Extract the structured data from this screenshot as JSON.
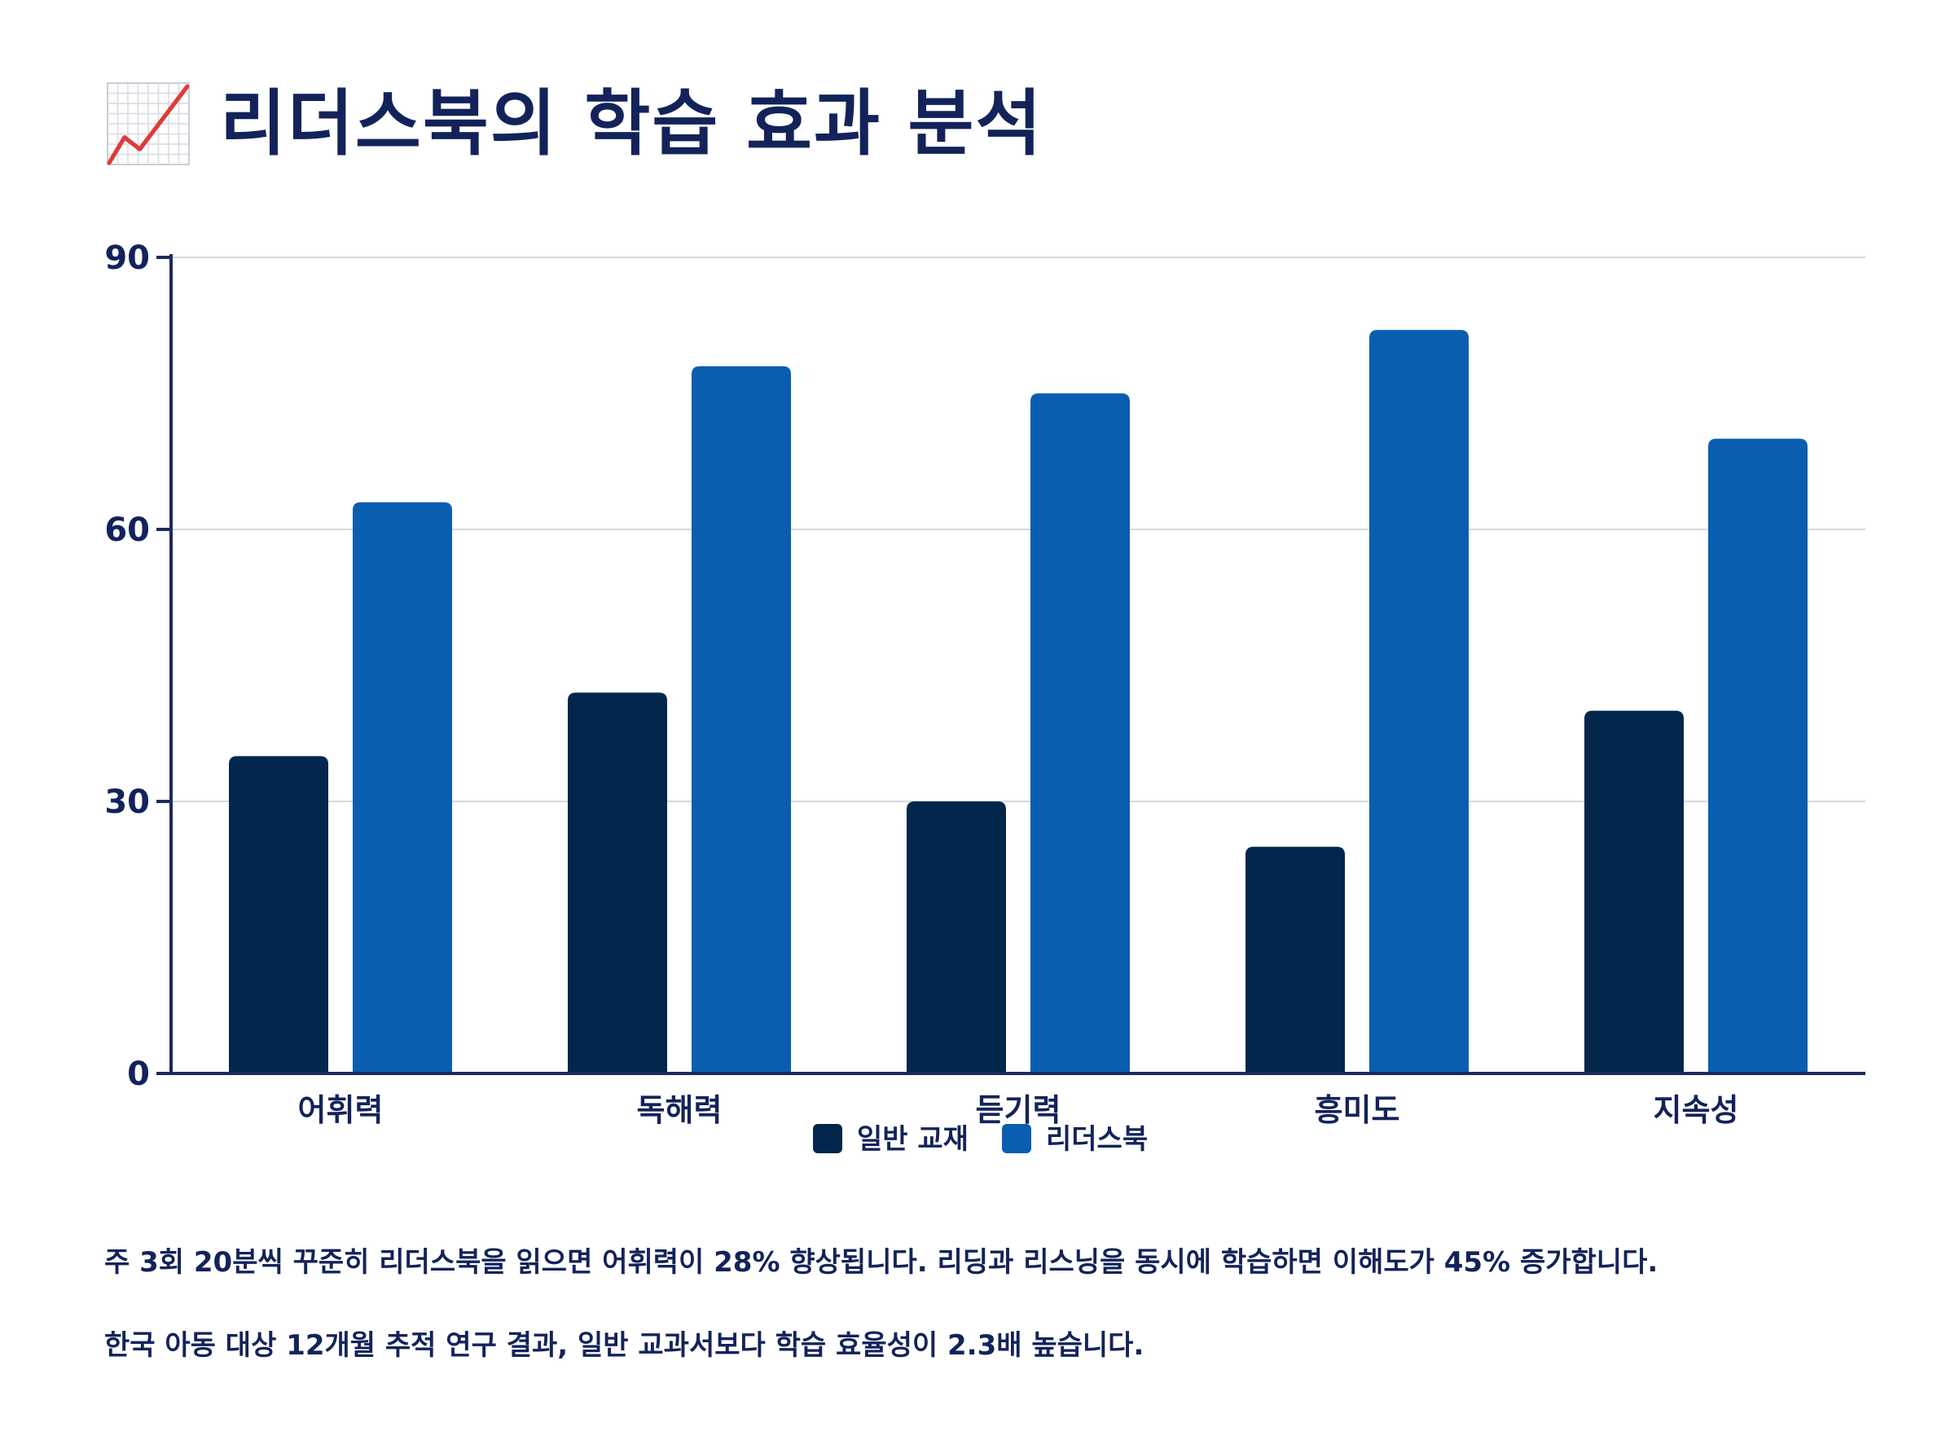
{
  "title": "리더스북의 학습 효과 분석",
  "icon": "chart-increasing-icon",
  "colors": {
    "series1": "#03264d",
    "series2": "#0a5eb0",
    "axis": "#1f2a5c",
    "grid": "#d5d8e6",
    "text": "#13235a"
  },
  "chart_data": {
    "type": "bar",
    "title": "리더스북의 학습 효과 분석",
    "xlabel": "",
    "ylabel": "",
    "ylim": [
      0,
      90
    ],
    "yticks": [
      0,
      30,
      60,
      90
    ],
    "grid": true,
    "legend_position": "bottom-center",
    "categories": [
      "어휘력",
      "독해력",
      "듣기력",
      "흥미도",
      "지속성"
    ],
    "series": [
      {
        "name": "일반 교재",
        "values": [
          35,
          42,
          30,
          25,
          40
        ]
      },
      {
        "name": "리더스북",
        "values": [
          63,
          78,
          75,
          82,
          70
        ]
      }
    ]
  },
  "notes": [
    "주 3회 20분씩 꾸준히 리더스북을 읽으면 어휘력이 28% 향상됩니다. 리딩과 리스닝을 동시에 학습하면 이해도가 45% 증가합니다.",
    "한국 아동 대상 12개월 추적 연구 결과, 일반 교과서보다 학습 효율성이 2.3배 높습니다."
  ]
}
